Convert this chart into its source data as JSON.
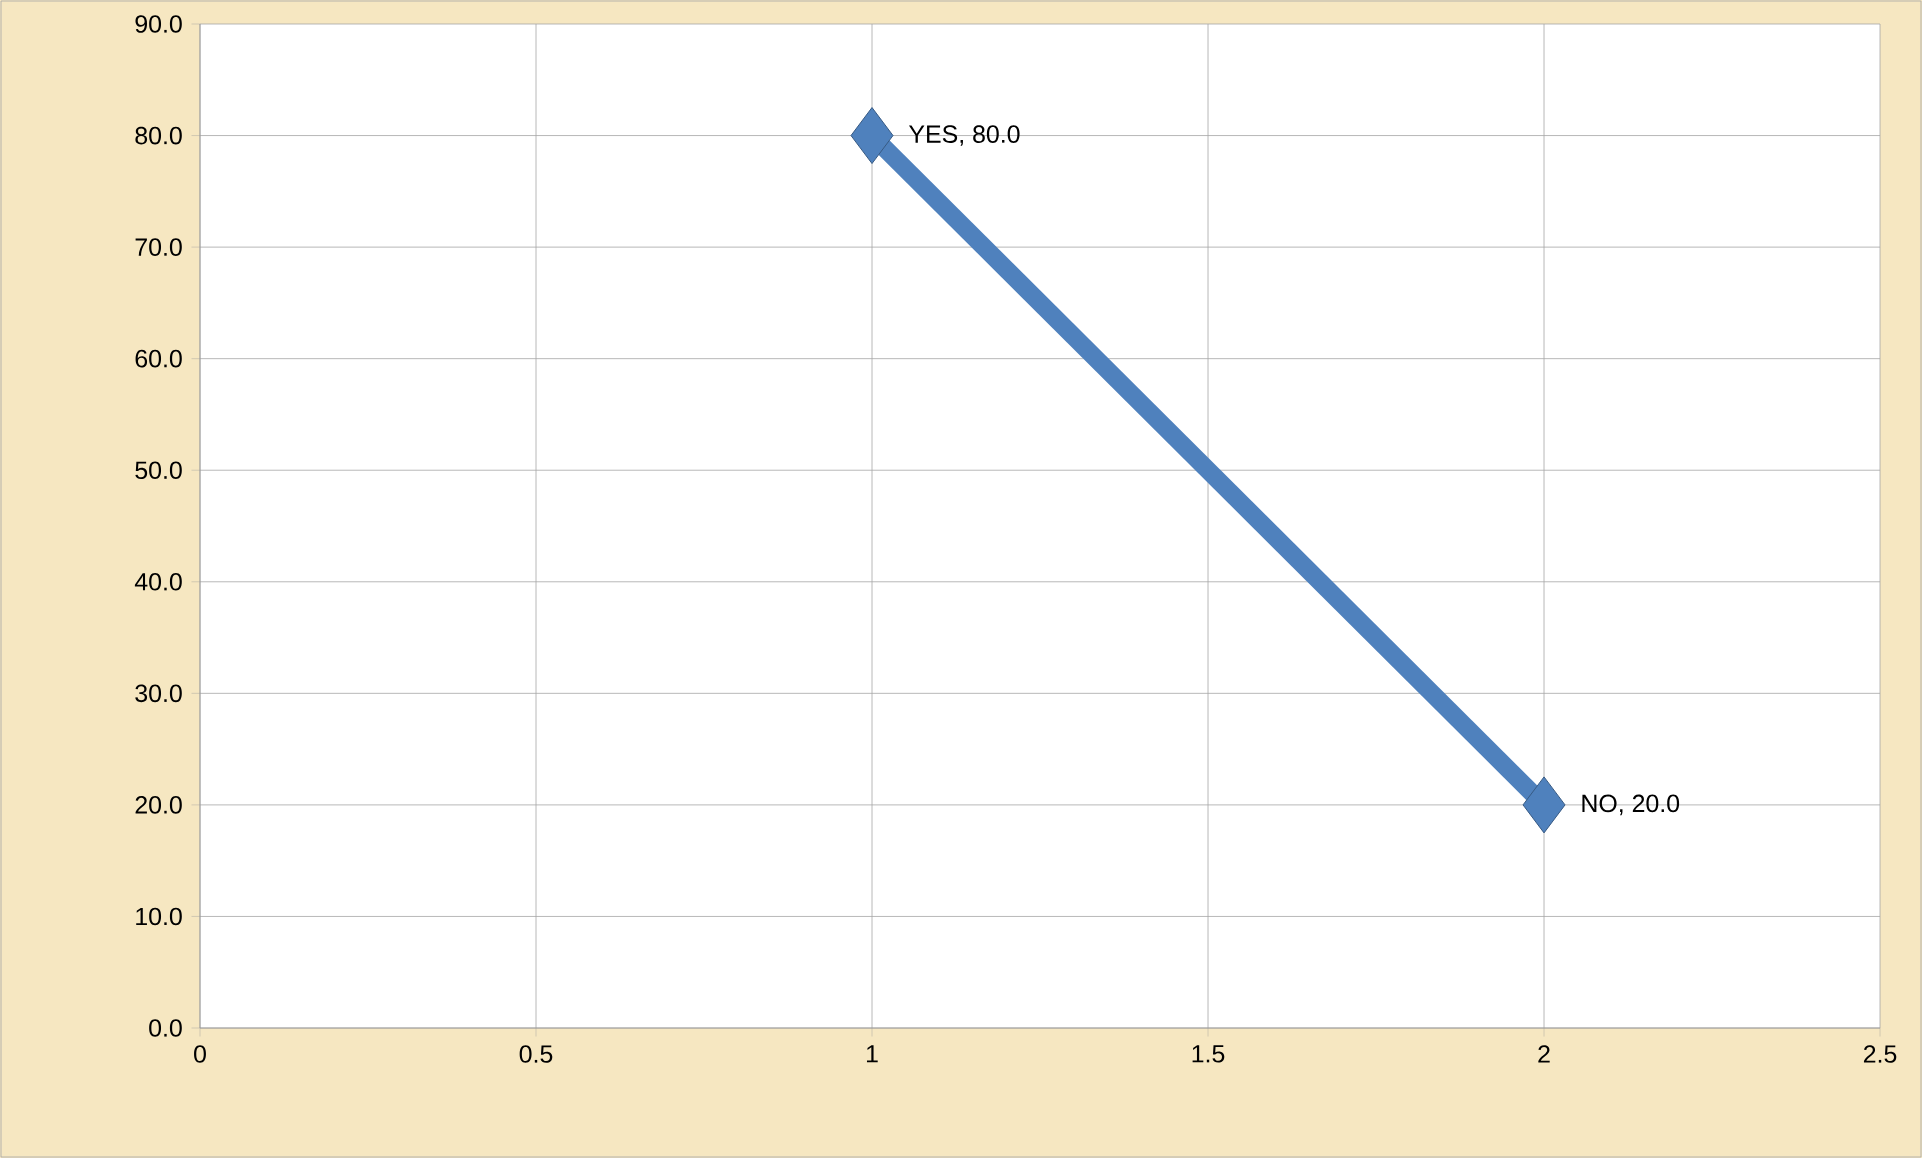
{
  "chart_data": {
    "type": "line",
    "x": [
      1,
      2
    ],
    "values": [
      80,
      20
    ],
    "color": "#4f81bd",
    "value_labels": [
      "YES, 80.0",
      "NO, 20.0"
    ],
    "xlim": [
      0,
      2.5
    ],
    "xticks": [
      0,
      0.5,
      1,
      1.5,
      2,
      2.5
    ],
    "ylim": [
      0,
      90
    ],
    "yticks": [
      {
        "value": 0,
        "label": "0.0"
      },
      {
        "value": 10,
        "label": "10.0"
      },
      {
        "value": 20,
        "label": "20.0"
      },
      {
        "value": 30,
        "label": "30.0"
      },
      {
        "value": 40,
        "label": "40.0"
      },
      {
        "value": 50,
        "label": "50.0"
      },
      {
        "value": 60,
        "label": "60.0"
      },
      {
        "value": 70,
        "label": "70.0"
      },
      {
        "value": 80,
        "label": "80.0"
      },
      {
        "value": 90,
        "label": "90.0"
      }
    ],
    "grid": true,
    "marker": "diamond",
    "line_style": "solid"
  }
}
